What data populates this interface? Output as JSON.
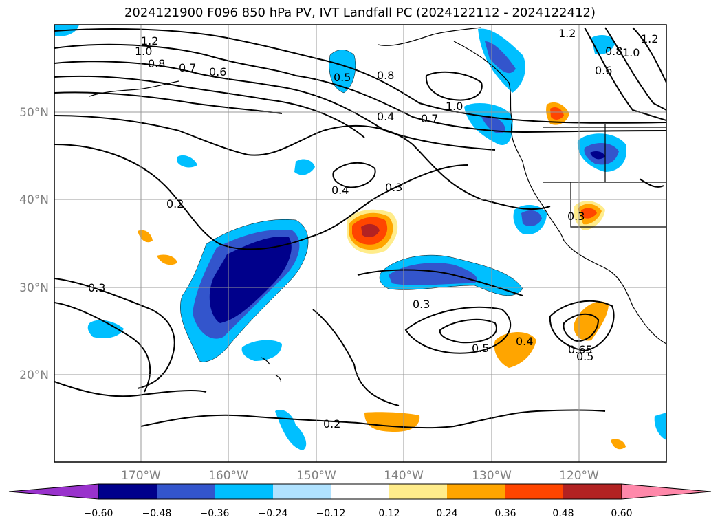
{
  "title": "2024121900 F096 850 hPa PV, IVT Landfall PC (2024122112 - 2024122412)",
  "map": {
    "lon_ticks": [
      "170°W",
      "160°W",
      "150°W",
      "140°W",
      "130°W",
      "120°W"
    ],
    "lat_ticks": [
      "50°N",
      "40°N",
      "30°N",
      "20°N"
    ],
    "contour_labels": [
      "1.2",
      "1.0",
      "0.8",
      "0.7",
      "0.6",
      "0.5",
      "0.8",
      "0.4",
      "0.7",
      "1.0",
      "1.2",
      "0.8",
      "1.0",
      "0.6",
      "1.2",
      "0.2",
      "0.4",
      "0.3",
      "0.3",
      "0.3",
      "0.3",
      "0.5",
      "0.4",
      "0.65",
      "0.5",
      "0.2"
    ]
  },
  "colorbar": {
    "colors": [
      "#9932CC",
      "#00008B",
      "#3355CC",
      "#00BFFF",
      "#B0E2FF",
      "#FFFFFF",
      "#FFEC8B",
      "#FFA500",
      "#FF4500",
      "#B22222",
      "#FF88AA"
    ],
    "tick_labels": [
      "−0.60",
      "−0.48",
      "−0.36",
      "−0.24",
      "−0.12",
      "0.12",
      "0.24",
      "0.36",
      "0.48",
      "0.60"
    ]
  }
}
